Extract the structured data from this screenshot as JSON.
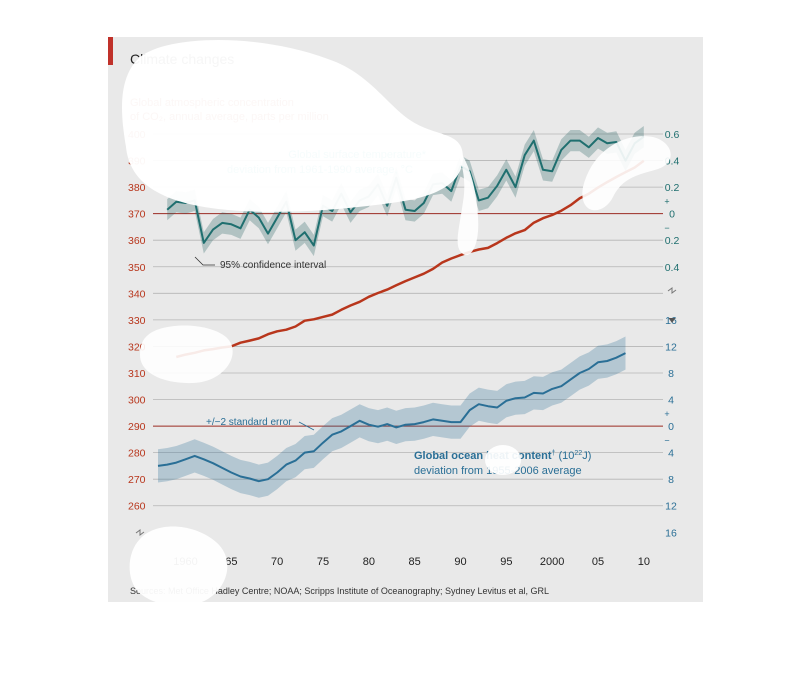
{
  "title": "Climate changes",
  "sources": "Sources: Met Office Hadley Centre; NOAA; Scripps Institute of Oceanography; Sydney Levitus et al, GRL",
  "colors": {
    "background": "#e9e9e9",
    "co2": "#b8361c",
    "temperature": "#1fb7b9",
    "ocean": "#2a6f96",
    "baseline": "#9b2b23",
    "accent_bar": "#c0312a"
  },
  "chart_data": {
    "type": "line",
    "title": "Climate changes",
    "x_ticks": [
      "1960",
      "65",
      "70",
      "75",
      "80",
      "85",
      "90",
      "95",
      "2000",
      "05",
      "10"
    ],
    "xlim": [
      1957,
      2011
    ],
    "co2": {
      "label_line1": "Global atmospheric concentration",
      "label_line2": "of CO₂, annual average, parts per million",
      "ylim": [
        255,
        400
      ],
      "ticks": [
        "400",
        "390",
        "380",
        "370",
        "360",
        "350",
        "340",
        "330",
        "320",
        "310",
        "300",
        "290",
        "280",
        "270",
        "260"
      ],
      "x": [
        1959,
        1960,
        1961,
        1962,
        1963,
        1964,
        1965,
        1966,
        1967,
        1968,
        1969,
        1970,
        1971,
        1972,
        1973,
        1974,
        1975,
        1976,
        1977,
        1978,
        1979,
        1980,
        1981,
        1982,
        1983,
        1984,
        1985,
        1986,
        1987,
        1988,
        1989,
        1990,
        1991,
        1992,
        1993,
        1994,
        1995,
        1996,
        1997,
        1998,
        1999,
        2000,
        2001,
        2002,
        2003,
        2004,
        2005,
        2006,
        2007,
        2008,
        2009,
        2010
      ],
      "values": [
        316.0,
        316.9,
        317.6,
        318.5,
        319.0,
        319.6,
        320.0,
        321.4,
        322.2,
        323.0,
        324.6,
        325.7,
        326.3,
        327.5,
        329.7,
        330.2,
        331.1,
        332.0,
        333.8,
        335.4,
        336.8,
        338.7,
        340.1,
        341.4,
        343.0,
        344.6,
        346.0,
        347.4,
        349.2,
        351.6,
        353.1,
        354.4,
        355.6,
        356.5,
        357.1,
        358.9,
        360.9,
        362.6,
        363.8,
        366.6,
        368.3,
        369.5,
        371.1,
        373.2,
        375.8,
        377.5,
        379.8,
        381.9,
        383.8,
        385.6,
        387.4,
        389.9
      ]
    },
    "temperature": {
      "label": "Global surface temperature*",
      "sublabel": "deviation from 1961-1990 average, °C",
      "annotation": "95% confidence interval",
      "ticks": [
        "0.6",
        "0.4",
        "0.2",
        "+",
        "0",
        "−",
        "0.2",
        "0.4"
      ],
      "x": [
        1958,
        1959,
        1960,
        1961,
        1962,
        1963,
        1964,
        1965,
        1966,
        1967,
        1968,
        1969,
        1970,
        1971,
        1972,
        1973,
        1974,
        1975,
        1976,
        1977,
        1978,
        1979,
        1980,
        1981,
        1982,
        1983,
        1984,
        1985,
        1986,
        1987,
        1988,
        1989,
        1990,
        1991,
        1992,
        1993,
        1994,
        1995,
        1996,
        1997,
        1998,
        1999,
        2000,
        2001,
        2002,
        2003,
        2004,
        2005,
        2006,
        2007,
        2008,
        2009,
        2010
      ],
      "values": [
        0.03,
        0.09,
        0.08,
        0.1,
        -0.22,
        -0.12,
        -0.07,
        -0.08,
        -0.11,
        0.03,
        -0.03,
        -0.15,
        -0.03,
        0.09,
        -0.2,
        -0.14,
        -0.24,
        0.06,
        0.02,
        0.15,
        0.01,
        0.1,
        0.13,
        0.22,
        0.06,
        0.27,
        0.03,
        0.02,
        0.08,
        0.22,
        0.23,
        0.17,
        0.36,
        0.32,
        0.1,
        0.12,
        0.21,
        0.33,
        0.2,
        0.44,
        0.55,
        0.33,
        0.32,
        0.48,
        0.55,
        0.55,
        0.5,
        0.57,
        0.53,
        0.54,
        0.4,
        0.53,
        0.58
      ]
    },
    "ocean": {
      "label_before": "Global ocean heat content",
      "label_sup": "†",
      "unit_open": " (10",
      "unit_sup": "22",
      "unit_close": "J)",
      "sublabel": "deviation from 1955-2006 average",
      "annotation": "+/−2 standard error",
      "ticks": [
        "16",
        "12",
        "8",
        "4",
        "+",
        "0",
        "−",
        "4",
        "8",
        "12",
        "16"
      ],
      "x": [
        1957,
        1958,
        1959,
        1960,
        1961,
        1962,
        1963,
        1964,
        1965,
        1966,
        1967,
        1968,
        1969,
        1970,
        1971,
        1972,
        1973,
        1974,
        1975,
        1976,
        1977,
        1978,
        1979,
        1980,
        1981,
        1982,
        1983,
        1984,
        1985,
        1986,
        1987,
        1988,
        1989,
        1990,
        1991,
        1992,
        1993,
        1994,
        1995,
        1996,
        1997,
        1998,
        1999,
        2000,
        2001,
        2002,
        2003,
        2004,
        2005,
        2006,
        2007,
        2008
      ],
      "values": [
        -6.0,
        -5.8,
        -5.5,
        -5.0,
        -4.5,
        -5.0,
        -5.6,
        -6.3,
        -7.0,
        -7.6,
        -7.9,
        -8.3,
        -8.0,
        -7.0,
        -5.8,
        -5.2,
        -4.0,
        -3.8,
        -2.5,
        -1.3,
        -0.8,
        0.0,
        0.8,
        0.2,
        -0.1,
        0.3,
        -0.2,
        0.2,
        0.3,
        0.6,
        1.0,
        0.8,
        0.6,
        0.6,
        2.4,
        3.3,
        3.0,
        2.8,
        3.8,
        4.2,
        4.3,
        5.0,
        4.9,
        5.6,
        6.0,
        7.0,
        8.0,
        8.6,
        9.6,
        9.8,
        10.3,
        11.0
      ]
    }
  }
}
